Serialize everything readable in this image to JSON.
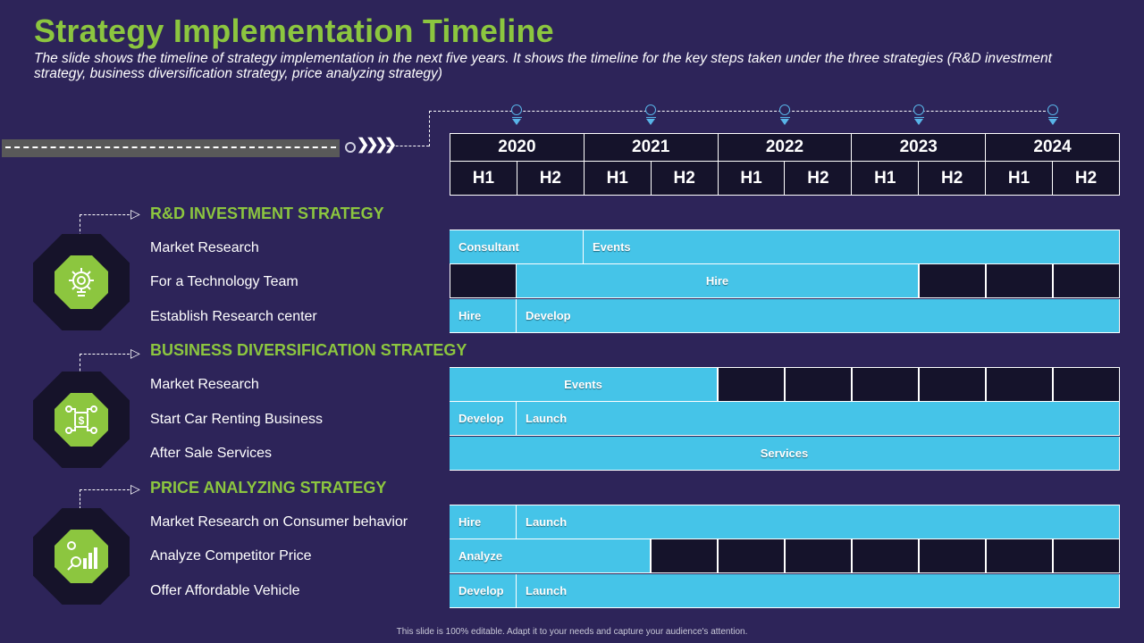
{
  "header": {
    "title": "Strategy Implementation Timeline",
    "subtitle": "The slide shows the timeline of strategy implementation in the next five years. It shows the timeline for the key steps taken under the three strategies (R&D investment strategy, business diversification strategy, price analyzing strategy)"
  },
  "timeline": {
    "years": [
      "2020",
      "2021",
      "2022",
      "2023",
      "2024"
    ],
    "halves": [
      "H1",
      "H2",
      "H1",
      "H2",
      "H1",
      "H2",
      "H1",
      "H2",
      "H1",
      "H2"
    ]
  },
  "sections": [
    {
      "title": "R&D INVESTMENT STRATEGY",
      "icon": "gear-bulb-icon",
      "tasks": [
        {
          "label": "Market Research",
          "bars": [
            {
              "text": "Consultant"
            },
            {
              "text": "Events"
            }
          ]
        },
        {
          "label": "For a Technology Team",
          "bars": [
            {
              "text": "Hire"
            }
          ]
        },
        {
          "label": "Establish Research center",
          "bars": [
            {
              "text": "Hire"
            },
            {
              "text": "Develop"
            }
          ]
        }
      ]
    },
    {
      "title": "BUSINESS DIVERSIFICATION STRATEGY",
      "icon": "dollar-network-icon",
      "tasks": [
        {
          "label": "Market Research",
          "bars": [
            {
              "text": "Events"
            }
          ]
        },
        {
          "label": "Start Car Renting Business",
          "bars": [
            {
              "text": "Develop"
            },
            {
              "text": "Launch"
            }
          ]
        },
        {
          "label": "After Sale Services",
          "bars": [
            {
              "text": "Services"
            }
          ]
        }
      ]
    },
    {
      "title": "PRICE ANALYZING STRATEGY",
      "icon": "growth-chart-icon",
      "tasks": [
        {
          "label": "Market Research on Consumer behavior",
          "bars": [
            {
              "text": "Hire"
            },
            {
              "text": "Launch"
            }
          ]
        },
        {
          "label": "Analyze Competitor Price",
          "bars": [
            {
              "text": "Analyze"
            }
          ]
        },
        {
          "label": "Offer Affordable Vehicle",
          "bars": [
            {
              "text": "Develop"
            },
            {
              "text": "Launch"
            }
          ]
        }
      ]
    }
  ],
  "footer": "This slide is 100% editable. Adapt it to your needs and capture your audience's attention.",
  "colors": {
    "background": "#2d2459",
    "accent_green": "#8cc63f",
    "bar_blue": "#45c4e8",
    "cell_dark": "#15132b",
    "marker_blue": "#58b4e8"
  }
}
